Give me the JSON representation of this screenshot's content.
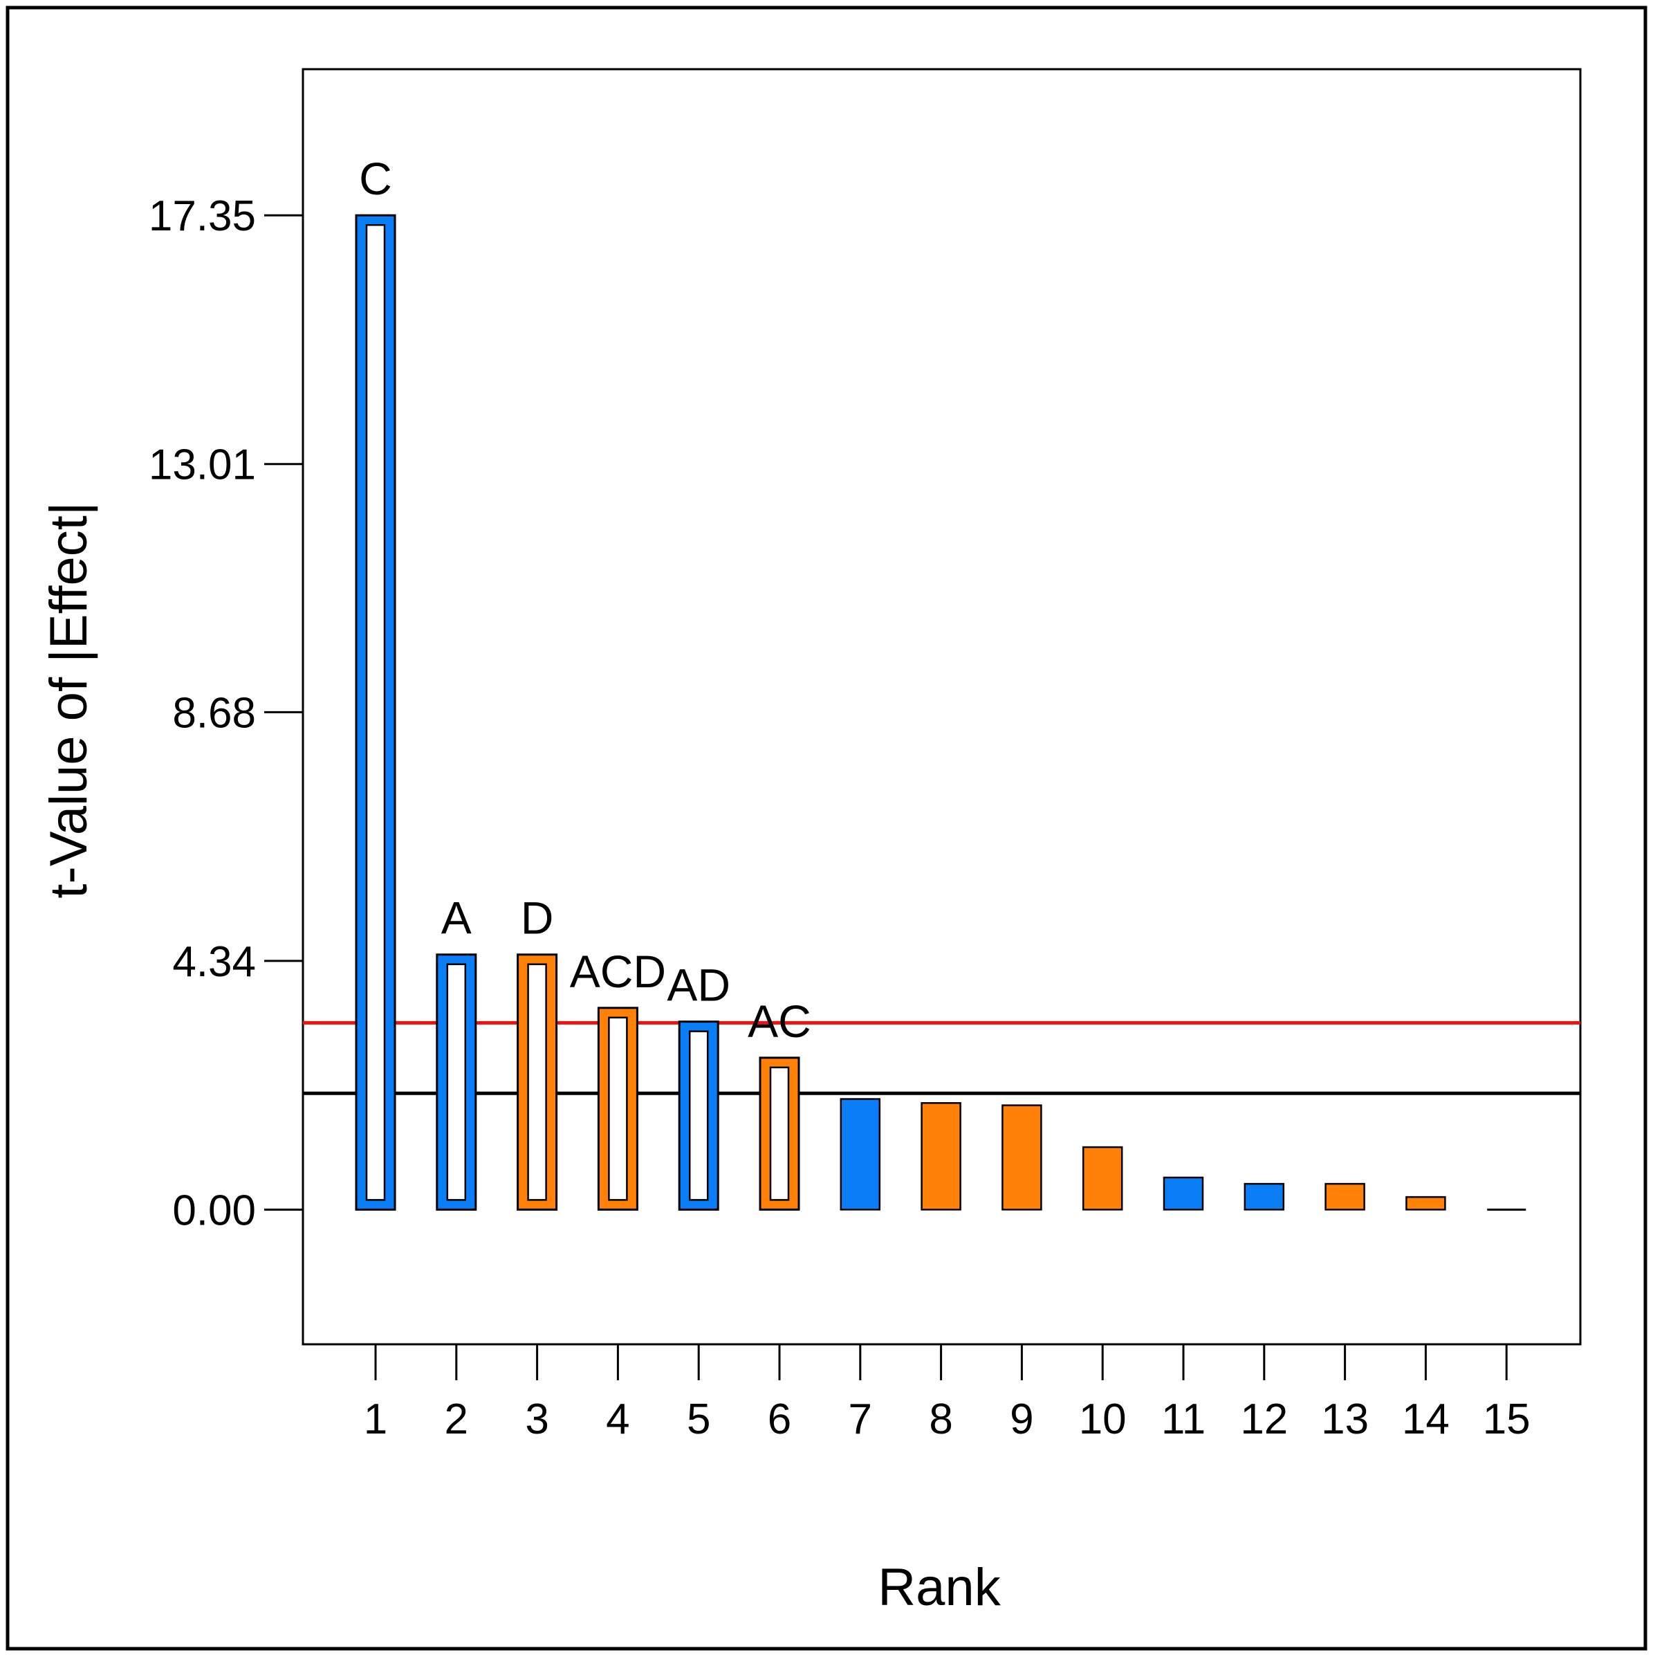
{
  "chart_data": {
    "type": "bar",
    "xlabel": "Rank",
    "ylabel": "t-Value of |Effect|",
    "ylim": [
      -2.35,
      19.9
    ],
    "y_ticks": [
      {
        "value": 0,
        "label": "0.00"
      },
      {
        "value": 4.34,
        "label": "4.34"
      },
      {
        "value": 8.68,
        "label": "8.68"
      },
      {
        "value": 13.01,
        "label": "13.01"
      },
      {
        "value": 17.35,
        "label": "17.35"
      }
    ],
    "categories": [
      "1",
      "2",
      "3",
      "4",
      "5",
      "6",
      "7",
      "8",
      "9",
      "10",
      "11",
      "12",
      "13",
      "14",
      "15"
    ],
    "values": [
      17.35,
      4.45,
      4.45,
      3.52,
      3.28,
      2.65,
      1.93,
      1.86,
      1.82,
      1.09,
      0.56,
      0.45,
      0.45,
      0.22,
      0.0
    ],
    "labels": [
      "C",
      "A",
      "D",
      "ACD",
      "AD",
      "AC",
      "",
      "",
      "",
      "",
      "",
      "",
      "",
      "",
      ""
    ],
    "bar_colors": [
      "blue",
      "blue",
      "orange",
      "orange",
      "blue",
      "orange",
      "blue",
      "orange",
      "orange",
      "orange",
      "blue",
      "blue",
      "orange",
      "orange",
      "blue"
    ],
    "hollow": [
      true,
      true,
      true,
      true,
      true,
      true,
      false,
      false,
      false,
      false,
      false,
      false,
      false,
      false,
      false
    ],
    "colors": {
      "blue": "#0A7EF6",
      "orange": "#FF8108",
      "red": "#EE1111",
      "black": "#000000"
    },
    "reference_lines": [
      {
        "value": 3.26,
        "color": "red"
      },
      {
        "value": 2.03,
        "color": "black"
      }
    ],
    "grid": false,
    "legend": "none"
  }
}
